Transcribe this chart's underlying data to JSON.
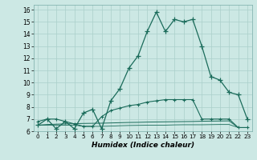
{
  "xlabel": "Humidex (Indice chaleur)",
  "bg_color": "#cce8e4",
  "grid_color": "#aacfca",
  "line_color": "#1a6b5a",
  "xlim": [
    -0.5,
    23.5
  ],
  "ylim": [
    6,
    16.4
  ],
  "xticks": [
    0,
    1,
    2,
    3,
    4,
    5,
    6,
    7,
    8,
    9,
    10,
    11,
    12,
    13,
    14,
    15,
    16,
    17,
    18,
    19,
    20,
    21,
    22,
    23
  ],
  "yticks": [
    6,
    7,
    8,
    9,
    10,
    11,
    12,
    13,
    14,
    15,
    16
  ],
  "s1_x": [
    0,
    1,
    2,
    3,
    4,
    5,
    6,
    7,
    8,
    9,
    10,
    11,
    12,
    13,
    14,
    15,
    16,
    17,
    18,
    19,
    20,
    21,
    22,
    23
  ],
  "s1_y": [
    6.5,
    7.0,
    6.2,
    6.8,
    6.2,
    7.5,
    7.8,
    6.2,
    8.5,
    9.5,
    11.2,
    12.2,
    14.2,
    15.8,
    14.2,
    15.2,
    15.0,
    15.2,
    13.0,
    10.5,
    10.2,
    9.2,
    9.0,
    7.0
  ],
  "s2_x": [
    0,
    1,
    2,
    3,
    4,
    5,
    6,
    7,
    8,
    9,
    10,
    11,
    12,
    13,
    14,
    15,
    16,
    17,
    18,
    19,
    20,
    21,
    22,
    23
  ],
  "s2_y": [
    6.8,
    7.0,
    7.0,
    6.8,
    6.6,
    6.4,
    6.4,
    7.2,
    7.7,
    7.9,
    8.1,
    8.2,
    8.4,
    8.5,
    8.6,
    8.6,
    8.6,
    8.6,
    7.0,
    7.0,
    7.0,
    7.0,
    6.3,
    6.3
  ],
  "s3_x": [
    0,
    1,
    2,
    3,
    4,
    5,
    6,
    7,
    8,
    9,
    10,
    11,
    12,
    13,
    14,
    15,
    16,
    17,
    18,
    19,
    20,
    21,
    22,
    23
  ],
  "s3_y": [
    6.5,
    6.55,
    6.58,
    6.6,
    6.62,
    6.64,
    6.65,
    6.66,
    6.68,
    6.7,
    6.72,
    6.73,
    6.75,
    6.76,
    6.77,
    6.78,
    6.79,
    6.8,
    6.82,
    6.83,
    6.84,
    6.85,
    6.3,
    6.3
  ],
  "s4_x": [
    0,
    1,
    2,
    3,
    4,
    5,
    6,
    7,
    8,
    9,
    10,
    11,
    12,
    13,
    14,
    15,
    16,
    17,
    18,
    19,
    20,
    21,
    22,
    23
  ],
  "s4_y": [
    6.5,
    6.5,
    6.5,
    6.5,
    6.5,
    6.4,
    6.4,
    6.4,
    6.42,
    6.45,
    6.47,
    6.48,
    6.49,
    6.5,
    6.5,
    6.52,
    6.53,
    6.53,
    6.53,
    6.54,
    6.55,
    6.55,
    6.3,
    6.3
  ]
}
